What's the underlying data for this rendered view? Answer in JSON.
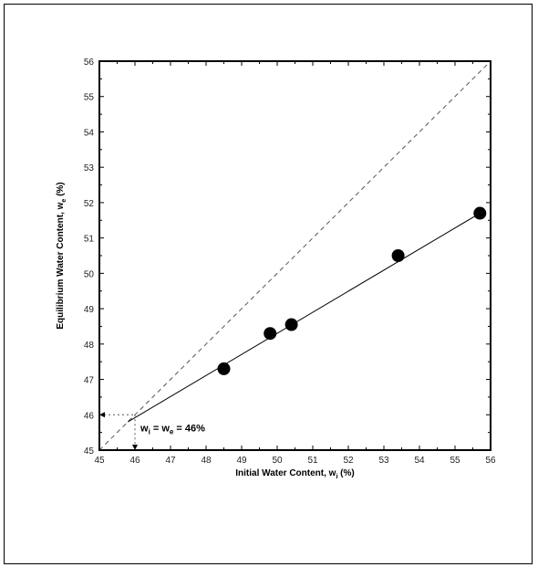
{
  "chart_data": {
    "type": "scatter",
    "title": "",
    "xlabel": "Initial Water Content, w",
    "xlabel_sub": "i",
    "xlabel_unit": " (%)",
    "ylabel": "Equilibrium Water Content, w",
    "ylabel_sub": "e",
    "ylabel_unit": " (%)",
    "xlim": [
      45,
      56
    ],
    "ylim": [
      45,
      56
    ],
    "xticks": [
      "45",
      "46",
      "47",
      "48",
      "49",
      "50",
      "51",
      "52",
      "53",
      "54",
      "55",
      "56"
    ],
    "yticks": [
      "45",
      "46",
      "47",
      "48",
      "49",
      "50",
      "51",
      "52",
      "53",
      "54",
      "55",
      "56"
    ],
    "grid": false,
    "series": [
      {
        "kind": "scatter",
        "x": [
          48.5,
          49.8,
          50.4,
          53.4,
          55.7
        ],
        "y": [
          47.3,
          48.3,
          48.55,
          50.5,
          51.7
        ]
      },
      {
        "kind": "line",
        "style": "solid",
        "x": [
          45.8,
          55.7
        ],
        "y": [
          45.8,
          51.7
        ]
      },
      {
        "kind": "line",
        "style": "dashed",
        "x": [
          45,
          56
        ],
        "y": [
          45,
          56
        ]
      }
    ],
    "annotation": {
      "prefix": "w",
      "sub1": "i",
      "middle": " = w",
      "sub2": "e",
      "suffix": " = 46%",
      "x": 46,
      "y": 46
    }
  }
}
